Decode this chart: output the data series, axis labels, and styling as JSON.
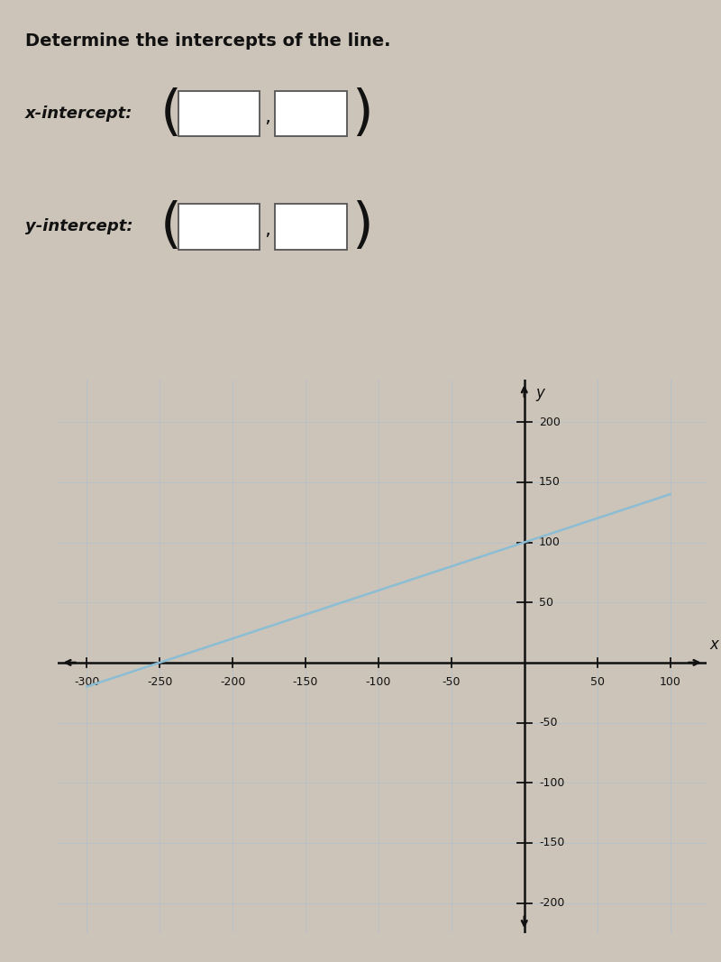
{
  "title": "Determine the intercepts of the line.",
  "x_intercept_label": "x-intercept:",
  "y_intercept_label": "y-intercept:",
  "line_x_start": -300,
  "line_x_end": 100,
  "line_color": "#8bbdd4",
  "line_width": 1.8,
  "xlim": [
    -320,
    125
  ],
  "ylim": [
    -225,
    235
  ],
  "x_ticks": [
    -300,
    -250,
    -200,
    -150,
    -100,
    -50,
    50,
    100
  ],
  "y_ticks": [
    -200,
    -150,
    -100,
    -50,
    50,
    100,
    150,
    200
  ],
  "axis_color": "#111111",
  "grid_color": "#aabfd4",
  "grid_alpha": 0.55,
  "plot_bg": "#dce6f0",
  "outer_bg": "#ccc4b8",
  "text_color": "#111111",
  "slope": 0.4,
  "y_intercept": 100,
  "title_fontsize": 14,
  "label_fontsize": 13,
  "tick_fontsize": 9
}
